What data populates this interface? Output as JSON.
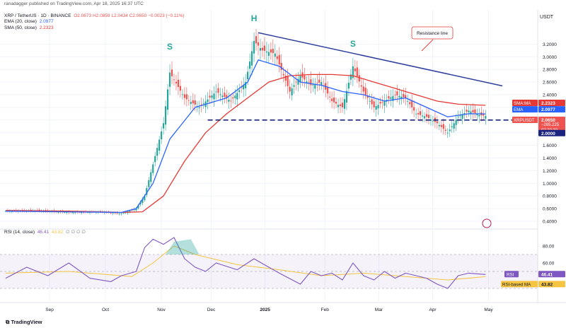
{
  "header": {
    "published": "ranadagger published on TradingView.com, Apr 18, 2025 16:37 UTC",
    "symbol": "XRP / TetherUS · 1D · BINANCE",
    "ohlc": "O2.0673 H2.0859 L2.0434 C2.0650 −0.0023 (−0.11%)",
    "ema_label": "EMA (20, close)",
    "ema_value": "2.0977",
    "sma_label": "SMA (50, close)",
    "sma_value": "2.2323",
    "rsi_label": "RSI (14, close)",
    "rsi_value": "46.41",
    "rsi_ma_value": "43.82",
    "rsi_extra": "∅ ∅ ∅ ∅"
  },
  "currency": "USDT",
  "footer_logo": "TradingView",
  "colors": {
    "ema": "#2962ff",
    "sma": "#e53935",
    "up": "#26a69a",
    "down": "#ef5350",
    "rsi": "#7e57c2",
    "rsi_ma": "#f5c542",
    "support": "#1a237e",
    "resistance": "#303f9f"
  },
  "annotations": {
    "left_shoulder": "S",
    "head": "H",
    "right_shoulder": "S",
    "resistance": "Resistance line"
  },
  "badges": {
    "sma": {
      "label": "SMA:MA",
      "value": "2.2323",
      "color": "#e53935"
    },
    "ema": {
      "label": "EMA",
      "value": "2.0977",
      "color": "#2962ff"
    },
    "price": {
      "label": "XRPUSDT",
      "value": "2.0650",
      "change": "−265.225",
      "timer": "07:22:33",
      "color": "#ef5350"
    },
    "support": {
      "value": "2.0000",
      "color": "#1a237e"
    },
    "rsi": {
      "label": "RSI",
      "value": "46.41",
      "color": "#7e57c2"
    },
    "rsi_ma": {
      "label": "RSI-based MA",
      "value": "43.82",
      "color": "#f5c542"
    }
  },
  "chart_data": [
    {
      "type": "line",
      "title": "XRP / TetherUS · 1D · BINANCE",
      "x_ticks": [
        "Sep",
        "Oct",
        "Nov",
        "Dec",
        "2025",
        "Feb",
        "Mar",
        "Apr",
        "May"
      ],
      "y_ticks": [
        "0.4000",
        "0.6000",
        "0.8000",
        "1.0000",
        "1.2000",
        "1.4000",
        "1.6000",
        "1.8000",
        "2.0000",
        "2.2000",
        "2.4000",
        "2.6000",
        "2.8000",
        "3.0000",
        "3.2000"
      ],
      "ylim": [
        0.3,
        3.45
      ],
      "series": [
        {
          "name": "XRP / TetherUS",
          "x": [
            0,
            15,
            30,
            45,
            55,
            62,
            66,
            70,
            75,
            78,
            85,
            92,
            100,
            107,
            114,
            118,
            122,
            128,
            135,
            140,
            145,
            150,
            155,
            160,
            165,
            170,
            175,
            180,
            185,
            190,
            195,
            200,
            205,
            210,
            215,
            220,
            225,
            228
          ],
          "values": [
            0.56,
            0.57,
            0.54,
            0.55,
            0.52,
            0.6,
            0.8,
            1.3,
            1.95,
            2.75,
            2.35,
            2.2,
            2.45,
            2.3,
            2.6,
            3.25,
            3.1,
            3.05,
            2.45,
            2.7,
            2.55,
            2.6,
            2.3,
            2.2,
            2.85,
            2.45,
            2.2,
            2.3,
            2.4,
            2.35,
            2.1,
            2.05,
            1.95,
            1.8,
            2.05,
            2.15,
            2.08,
            2.065
          ]
        },
        {
          "name": "EMA (20, close)",
          "x": [
            0,
            30,
            55,
            62,
            70,
            78,
            90,
            105,
            115,
            120,
            130,
            140,
            150,
            160,
            170,
            180,
            190,
            200,
            210,
            220,
            228
          ],
          "values": [
            0.56,
            0.55,
            0.54,
            0.6,
            1.0,
            1.7,
            2.2,
            2.35,
            2.6,
            2.95,
            2.85,
            2.6,
            2.55,
            2.45,
            2.4,
            2.3,
            2.35,
            2.2,
            2.05,
            2.1,
            2.0977
          ]
        },
        {
          "name": "SMA (50, close)",
          "x": [
            0,
            30,
            55,
            65,
            75,
            85,
            95,
            105,
            115,
            125,
            135,
            145,
            155,
            165,
            175,
            185,
            195,
            205,
            215,
            228
          ],
          "values": [
            0.57,
            0.56,
            0.54,
            0.55,
            0.8,
            1.35,
            1.8,
            2.1,
            2.35,
            2.6,
            2.7,
            2.72,
            2.72,
            2.7,
            2.6,
            2.5,
            2.4,
            2.3,
            2.25,
            2.2323
          ]
        }
      ],
      "lines": [
        {
          "name": "support",
          "y": 2.0
        },
        {
          "name": "resistance",
          "from": [
            120,
            3.38
          ],
          "to": [
            236,
            2.54
          ]
        }
      ]
    },
    {
      "type": "line",
      "title": "RSI (14, close)",
      "y_ticks": [
        "60.00",
        "80.00"
      ],
      "ylim": [
        20,
        95
      ],
      "series": [
        {
          "name": "RSI (14, close)",
          "x": [
            0,
            10,
            20,
            30,
            40,
            50,
            55,
            62,
            66,
            70,
            75,
            80,
            85,
            90,
            95,
            100,
            110,
            118,
            125,
            130,
            140,
            145,
            150,
            155,
            160,
            165,
            170,
            175,
            180,
            185,
            190,
            200,
            205,
            210,
            215,
            220,
            228
          ],
          "values": [
            42,
            55,
            45,
            60,
            42,
            38,
            45,
            50,
            78,
            88,
            82,
            90,
            65,
            55,
            50,
            60,
            52,
            65,
            55,
            48,
            35,
            50,
            45,
            48,
            40,
            60,
            45,
            40,
            50,
            42,
            48,
            42,
            35,
            30,
            45,
            48,
            46.41
          ]
        },
        {
          "name": "RSI-based MA",
          "x": [
            0,
            30,
            60,
            70,
            80,
            90,
            110,
            130,
            150,
            170,
            190,
            210,
            228
          ],
          "values": [
            48,
            50,
            44,
            60,
            80,
            70,
            58,
            52,
            45,
            48,
            44,
            40,
            43.82
          ]
        }
      ]
    }
  ]
}
